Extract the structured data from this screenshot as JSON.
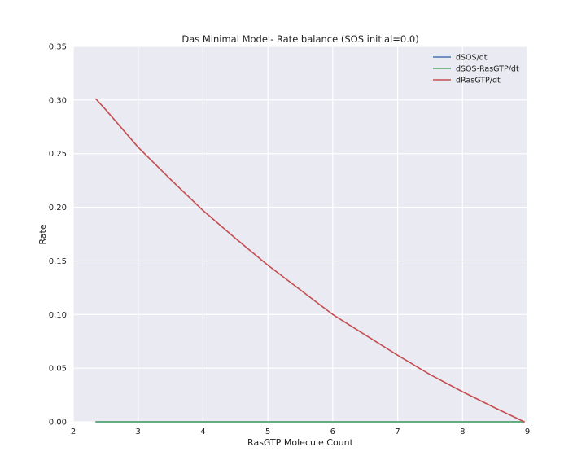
{
  "chart_data": {
    "type": "line",
    "title": "Das Minimal Model- Rate balance (SOS initial=0.0)",
    "xlabel": "RasGTP Molecule Count",
    "ylabel": "Rate",
    "xlim": [
      2,
      9
    ],
    "ylim": [
      0,
      0.35
    ],
    "xticks": [
      2,
      3,
      4,
      5,
      6,
      7,
      8,
      9
    ],
    "xtick_labels": [
      "2",
      "3",
      "4",
      "5",
      "6",
      "7",
      "8",
      "9"
    ],
    "yticks": [
      0,
      0.05,
      0.1,
      0.15,
      0.2,
      0.25,
      0.3,
      0.35
    ],
    "ytick_labels": [
      "0.00",
      "0.05",
      "0.10",
      "0.15",
      "0.20",
      "0.25",
      "0.30",
      "0.35"
    ],
    "grid": true,
    "legend_position": "top-right",
    "series": [
      {
        "name": "dSOS/dt",
        "color": "#4c72b0",
        "x": [
          2.35,
          3,
          4,
          5,
          6,
          7,
          8,
          8.95
        ],
        "y": [
          0,
          0,
          0,
          0,
          0,
          0,
          0,
          0
        ]
      },
      {
        "name": "dSOS-RasGTP/dt",
        "color": "#55a868",
        "x": [
          2.35,
          3,
          4,
          5,
          6,
          7,
          8,
          8.95
        ],
        "y": [
          0,
          0,
          0,
          0,
          0,
          0,
          0,
          0
        ]
      },
      {
        "name": "dRasGTP/dt",
        "color": "#c44e52",
        "x": [
          2.35,
          2.5,
          3,
          3.5,
          4,
          4.5,
          5,
          5.5,
          6,
          6.5,
          7,
          7.5,
          8,
          8.5,
          8.95
        ],
        "y": [
          0.301,
          0.291,
          0.256,
          0.226,
          0.197,
          0.171,
          0.146,
          0.123,
          0.1,
          0.081,
          0.062,
          0.044,
          0.028,
          0.013,
          0.0
        ]
      }
    ]
  }
}
